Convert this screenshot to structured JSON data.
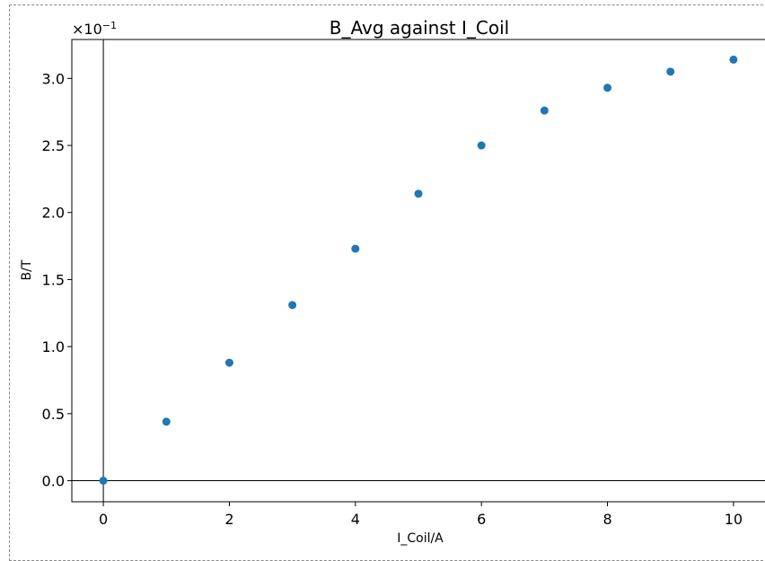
{
  "chart_data": {
    "type": "scatter",
    "title": "B_Avg against I_Coil",
    "xlabel": "I_Coil/A",
    "ylabel": "B/T",
    "offset_text": "×10",
    "offset_exponent": "−1",
    "x": [
      0,
      1,
      2,
      3,
      4,
      5,
      6,
      7,
      8,
      9,
      10
    ],
    "y": [
      0.0,
      0.044,
      0.088,
      0.131,
      0.173,
      0.214,
      0.25,
      0.276,
      0.293,
      0.305,
      0.314
    ],
    "xlim": [
      -0.5,
      10.5
    ],
    "ylim": [
      -0.0157,
      0.329
    ],
    "xticks": [
      0,
      2,
      4,
      6,
      8,
      10
    ],
    "xtick_labels": [
      "0",
      "2",
      "4",
      "6",
      "8",
      "10"
    ],
    "yticks": [
      0.0,
      0.05,
      0.1,
      0.15,
      0.2,
      0.25,
      0.3
    ],
    "ytick_labels": [
      "0.0",
      "0.5",
      "1.0",
      "1.5",
      "2.0",
      "2.5",
      "3.0"
    ],
    "reference_lines": {
      "x": 0,
      "y": 0
    },
    "grid": false,
    "legend": "none",
    "colors": {
      "marker": "#1f77b4",
      "axes": "#000000",
      "reference": "#000000"
    }
  }
}
